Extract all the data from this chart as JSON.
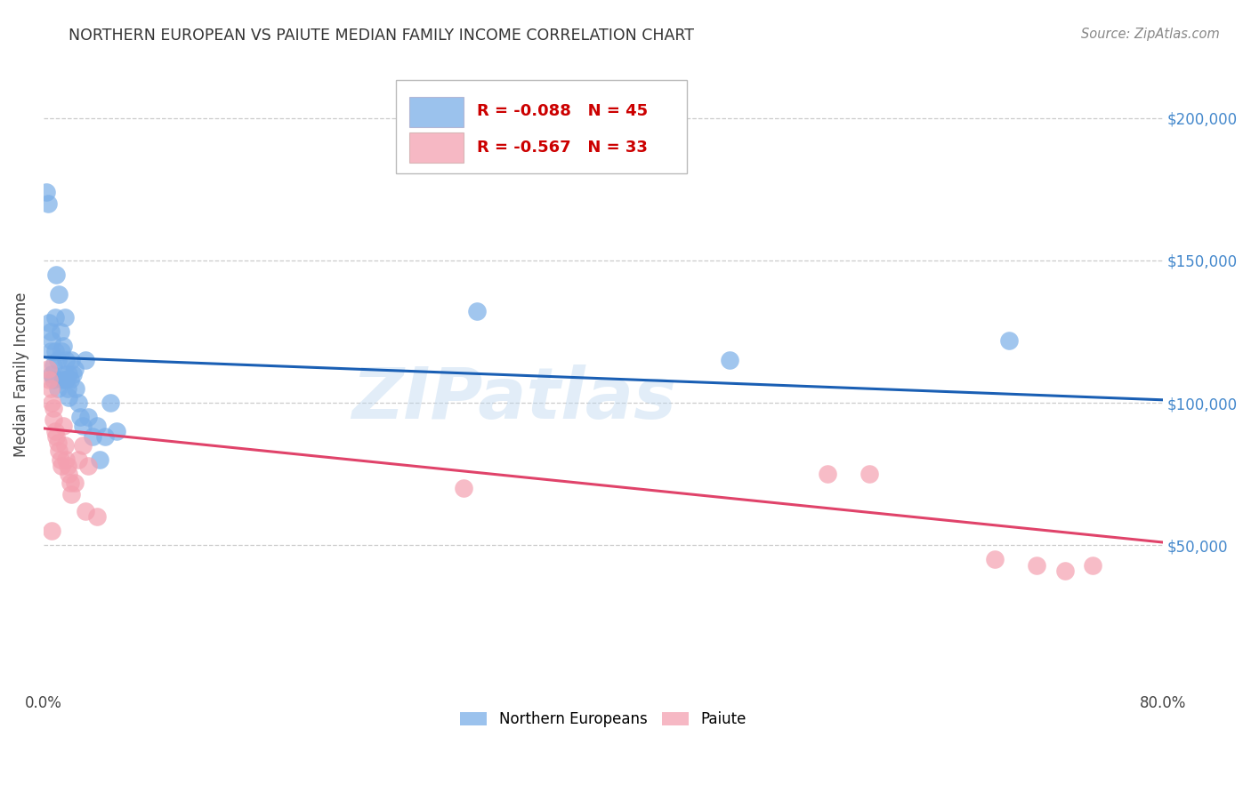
{
  "title": "NORTHERN EUROPEAN VS PAIUTE MEDIAN FAMILY INCOME CORRELATION CHART",
  "source": "Source: ZipAtlas.com",
  "ylabel": "Median Family Income",
  "ytick_labels": [
    "$50,000",
    "$100,000",
    "$150,000",
    "$200,000"
  ],
  "ytick_values": [
    50000,
    100000,
    150000,
    200000
  ],
  "ylim": [
    0,
    220000
  ],
  "xlim": [
    0.0,
    0.8
  ],
  "blue_R": -0.088,
  "blue_N": 45,
  "pink_R": -0.567,
  "pink_N": 33,
  "blue_color": "#7aaee8",
  "pink_color": "#f4a0b0",
  "blue_line_color": "#1a5fb4",
  "pink_line_color": "#e0436a",
  "watermark": "ZIPatlas",
  "blue_line_x0": 0.0,
  "blue_line_x1": 0.8,
  "blue_line_y0": 116000,
  "blue_line_y1": 101000,
  "pink_line_x0": 0.0,
  "pink_line_x1": 0.8,
  "pink_line_y0": 91000,
  "pink_line_y1": 51000,
  "blue_points_x": [
    0.002,
    0.003,
    0.004,
    0.005,
    0.005,
    0.006,
    0.006,
    0.007,
    0.007,
    0.008,
    0.008,
    0.009,
    0.01,
    0.01,
    0.011,
    0.012,
    0.013,
    0.014,
    0.014,
    0.015,
    0.015,
    0.016,
    0.016,
    0.017,
    0.018,
    0.018,
    0.019,
    0.02,
    0.021,
    0.022,
    0.023,
    0.025,
    0.026,
    0.028,
    0.03,
    0.032,
    0.035,
    0.038,
    0.04,
    0.044,
    0.048,
    0.052,
    0.31,
    0.49,
    0.69
  ],
  "blue_points_y": [
    174000,
    170000,
    128000,
    125000,
    118000,
    122000,
    110000,
    113000,
    108000,
    130000,
    118000,
    145000,
    115000,
    105000,
    138000,
    125000,
    118000,
    108000,
    120000,
    130000,
    110000,
    108000,
    115000,
    105000,
    110000,
    102000,
    108000,
    115000,
    110000,
    112000,
    105000,
    100000,
    95000,
    92000,
    115000,
    95000,
    88000,
    92000,
    80000,
    88000,
    100000,
    90000,
    132000,
    115000,
    122000
  ],
  "pink_points_x": [
    0.003,
    0.004,
    0.005,
    0.006,
    0.006,
    0.007,
    0.007,
    0.008,
    0.009,
    0.01,
    0.011,
    0.012,
    0.013,
    0.014,
    0.015,
    0.016,
    0.017,
    0.018,
    0.019,
    0.02,
    0.022,
    0.025,
    0.028,
    0.03,
    0.032,
    0.038,
    0.3,
    0.56,
    0.59,
    0.68,
    0.71,
    0.73,
    0.75
  ],
  "pink_points_y": [
    112000,
    108000,
    105000,
    100000,
    55000,
    98000,
    94000,
    90000,
    88000,
    86000,
    83000,
    80000,
    78000,
    92000,
    85000,
    80000,
    78000,
    75000,
    72000,
    68000,
    72000,
    80000,
    85000,
    62000,
    78000,
    60000,
    70000,
    75000,
    75000,
    45000,
    43000,
    41000,
    43000
  ]
}
